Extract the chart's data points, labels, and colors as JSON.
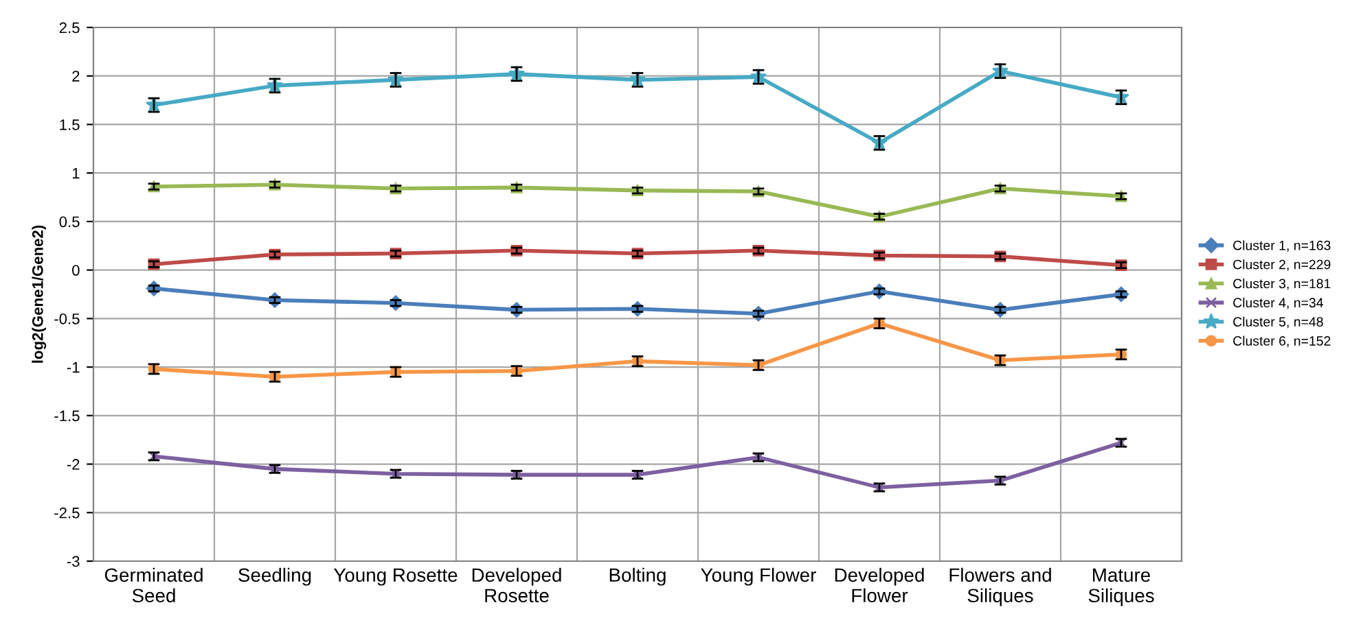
{
  "chart_data": {
    "type": "line",
    "ylabel": "log2(Gene1/Gene2)",
    "categories": [
      "Germinated\nSeed",
      "Seedling",
      "Young Rosette",
      "Developed\nRosette",
      "Bolting",
      "Young Flower",
      "Developed\nFlower",
      "Flowers and\nSiliques",
      "Mature\nSiliques"
    ],
    "ylim": [
      -3,
      2.5
    ],
    "yticks": [
      -3,
      -2.5,
      -2,
      -1.5,
      -1,
      -0.5,
      0,
      0.5,
      1,
      1.5,
      2,
      2.5
    ],
    "grid": true,
    "legend": "right",
    "series": [
      {
        "name": "Cluster 1, n=163",
        "color": "#4a7ebb",
        "marker": "diamond",
        "values": [
          -0.19,
          -0.31,
          -0.34,
          -0.41,
          -0.4,
          -0.45,
          -0.22,
          -0.41,
          -0.25
        ],
        "errors": [
          0.03,
          0.03,
          0.03,
          0.03,
          0.03,
          0.03,
          0.03,
          0.03,
          0.03
        ]
      },
      {
        "name": "Cluster 2, n=229",
        "color": "#be4b48",
        "marker": "square",
        "values": [
          0.06,
          0.16,
          0.17,
          0.2,
          0.17,
          0.2,
          0.15,
          0.14,
          0.05
        ],
        "errors": [
          0.03,
          0.03,
          0.03,
          0.03,
          0.03,
          0.03,
          0.03,
          0.03,
          0.03
        ]
      },
      {
        "name": "Cluster 3, n=181",
        "color": "#98b954",
        "marker": "triangle",
        "values": [
          0.86,
          0.88,
          0.84,
          0.85,
          0.82,
          0.81,
          0.55,
          0.84,
          0.76
        ],
        "errors": [
          0.03,
          0.03,
          0.03,
          0.03,
          0.03,
          0.03,
          0.03,
          0.03,
          0.03
        ]
      },
      {
        "name": "Cluster 4, n=34",
        "color": "#7d60a0",
        "marker": "cross",
        "values": [
          -1.92,
          -2.05,
          -2.1,
          -2.11,
          -2.11,
          -1.93,
          -2.24,
          -2.17,
          -1.78
        ],
        "errors": [
          0.04,
          0.04,
          0.04,
          0.04,
          0.04,
          0.04,
          0.04,
          0.04,
          0.04
        ]
      },
      {
        "name": "Cluster 5, n=48",
        "color": "#46aac5",
        "marker": "star",
        "values": [
          1.7,
          1.9,
          1.96,
          2.02,
          1.96,
          1.99,
          1.31,
          2.05,
          1.78
        ],
        "errors": [
          0.07,
          0.07,
          0.07,
          0.07,
          0.07,
          0.07,
          0.07,
          0.07,
          0.07
        ]
      },
      {
        "name": "Cluster 6, n=152",
        "color": "#f79646",
        "marker": "circle",
        "values": [
          -1.02,
          -1.1,
          -1.05,
          -1.04,
          -0.94,
          -0.98,
          -0.55,
          -0.93,
          -0.87
        ],
        "errors": [
          0.05,
          0.05,
          0.05,
          0.05,
          0.05,
          0.05,
          0.05,
          0.05,
          0.05
        ]
      }
    ]
  }
}
